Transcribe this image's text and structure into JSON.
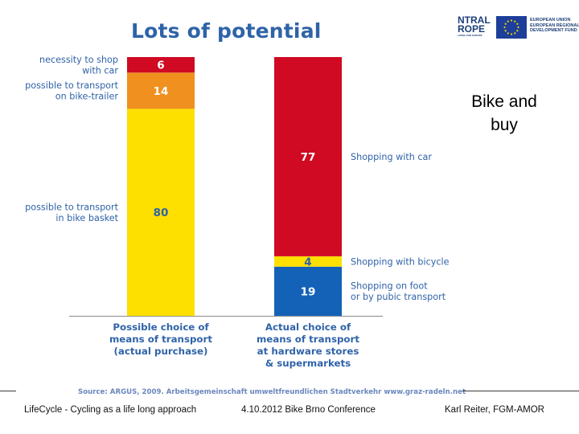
{
  "slide": {
    "title": "Lots of potential",
    "side_note": "Bike and buy",
    "source": "Source: ARGUS, 2009. Arbeitsgemeinschaft umweltfreundlichen Stadtverkehr www.graz-radeln.net"
  },
  "logos": {
    "central_europe_big": "NTRAL\nROPE",
    "central_europe_small": "LIVING FOR EUROPE",
    "eu_text": "EUROPEAN UNION\nEUROPEAN REGIONAL\nDEVELOPMENT FUND",
    "eu_flag_color": "#1d3f9a",
    "eu_star_color": "#f5d300"
  },
  "footer": {
    "left": "LifeCycle - Cycling as a life long approach",
    "center": "4.10.2012 Bike Brno Conference",
    "right": "Karl Reiter, FGM-AMOR"
  },
  "chart_data": {
    "type": "bar",
    "stacked": true,
    "unit": "%",
    "ylim": [
      0,
      100
    ],
    "categories": [
      "Possible choice of means of transport (actual purchase)",
      "Actual choice of means of transport at hardware stores & supermarkets"
    ],
    "bars": [
      {
        "label_lines": [
          "Possible choice of",
          "means of transport",
          "(actual purchase)"
        ],
        "label_side": "left",
        "segments": [
          {
            "value": 80,
            "color": "#fde000",
            "label_lines": [
              "possible to transport",
              "in bike basket"
            ]
          },
          {
            "value": 14,
            "color": "#f0901e",
            "label_lines": [
              "possible to transport",
              "on bike-trailer"
            ]
          },
          {
            "value": 6,
            "color": "#cf0a22",
            "label_lines": [
              "necessity to shop",
              "with car"
            ]
          }
        ]
      },
      {
        "label_lines": [
          "Actual choice of",
          "means of transport",
          "at hardware stores",
          "& supermarkets"
        ],
        "label_side": "right",
        "segments": [
          {
            "value": 19,
            "color": "#1462b8",
            "label_lines": [
              "Shopping on foot",
              "or by pubic transport"
            ]
          },
          {
            "value": 4,
            "color": "#fde000",
            "label_lines": [
              "Shopping with bicycle"
            ]
          },
          {
            "value": 77,
            "color": "#cf0a22",
            "label_lines": [
              "Shopping with car"
            ]
          }
        ]
      }
    ],
    "label_color": "#2f63a8",
    "baseline_color": "#9a9a9a"
  }
}
